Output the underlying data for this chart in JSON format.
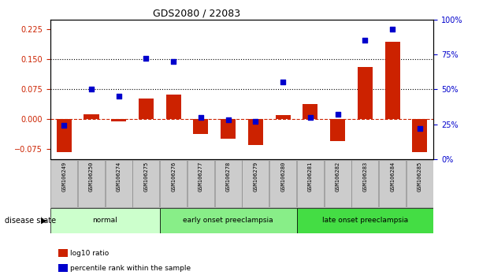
{
  "title": "GDS2080 / 22083",
  "samples": [
    "GSM106249",
    "GSM106250",
    "GSM106274",
    "GSM106275",
    "GSM106276",
    "GSM106277",
    "GSM106278",
    "GSM106279",
    "GSM106280",
    "GSM106281",
    "GSM106282",
    "GSM106283",
    "GSM106284",
    "GSM106285"
  ],
  "log10_ratio": [
    -0.082,
    0.013,
    -0.006,
    0.052,
    0.062,
    -0.038,
    -0.05,
    -0.065,
    0.01,
    0.038,
    -0.055,
    0.13,
    0.195,
    -0.082
  ],
  "percentile_rank": [
    24,
    50,
    45,
    72,
    70,
    30,
    28,
    27,
    55,
    30,
    32,
    85,
    93,
    22
  ],
  "left_ylim": [
    -0.1,
    0.25
  ],
  "right_ylim": [
    0,
    100
  ],
  "left_yticks": [
    -0.075,
    0,
    0.075,
    0.15,
    0.225
  ],
  "right_yticks": [
    0,
    25,
    50,
    75,
    100
  ],
  "hline_values": [
    0.075,
    0.15
  ],
  "bar_color": "#cc2200",
  "dot_color": "#0000cc",
  "disease_groups": [
    {
      "label": "normal",
      "start": 0,
      "end": 4,
      "color": "#ccffcc"
    },
    {
      "label": "early onset preeclampsia",
      "start": 4,
      "end": 9,
      "color": "#88ee88"
    },
    {
      "label": "late onset preeclampsia",
      "start": 9,
      "end": 14,
      "color": "#44dd44"
    }
  ],
  "legend_items": [
    {
      "label": "log10 ratio",
      "color": "#cc2200"
    },
    {
      "label": "percentile rank within the sample",
      "color": "#0000cc"
    }
  ],
  "disease_state_label": "disease state",
  "bg_color": "#ffffff",
  "axis_bg_color": "#ffffff",
  "tick_label_color_left": "#cc2200",
  "tick_label_color_right": "#0000cc",
  "sample_box_color": "#cccccc",
  "sample_box_edge": "#888888"
}
